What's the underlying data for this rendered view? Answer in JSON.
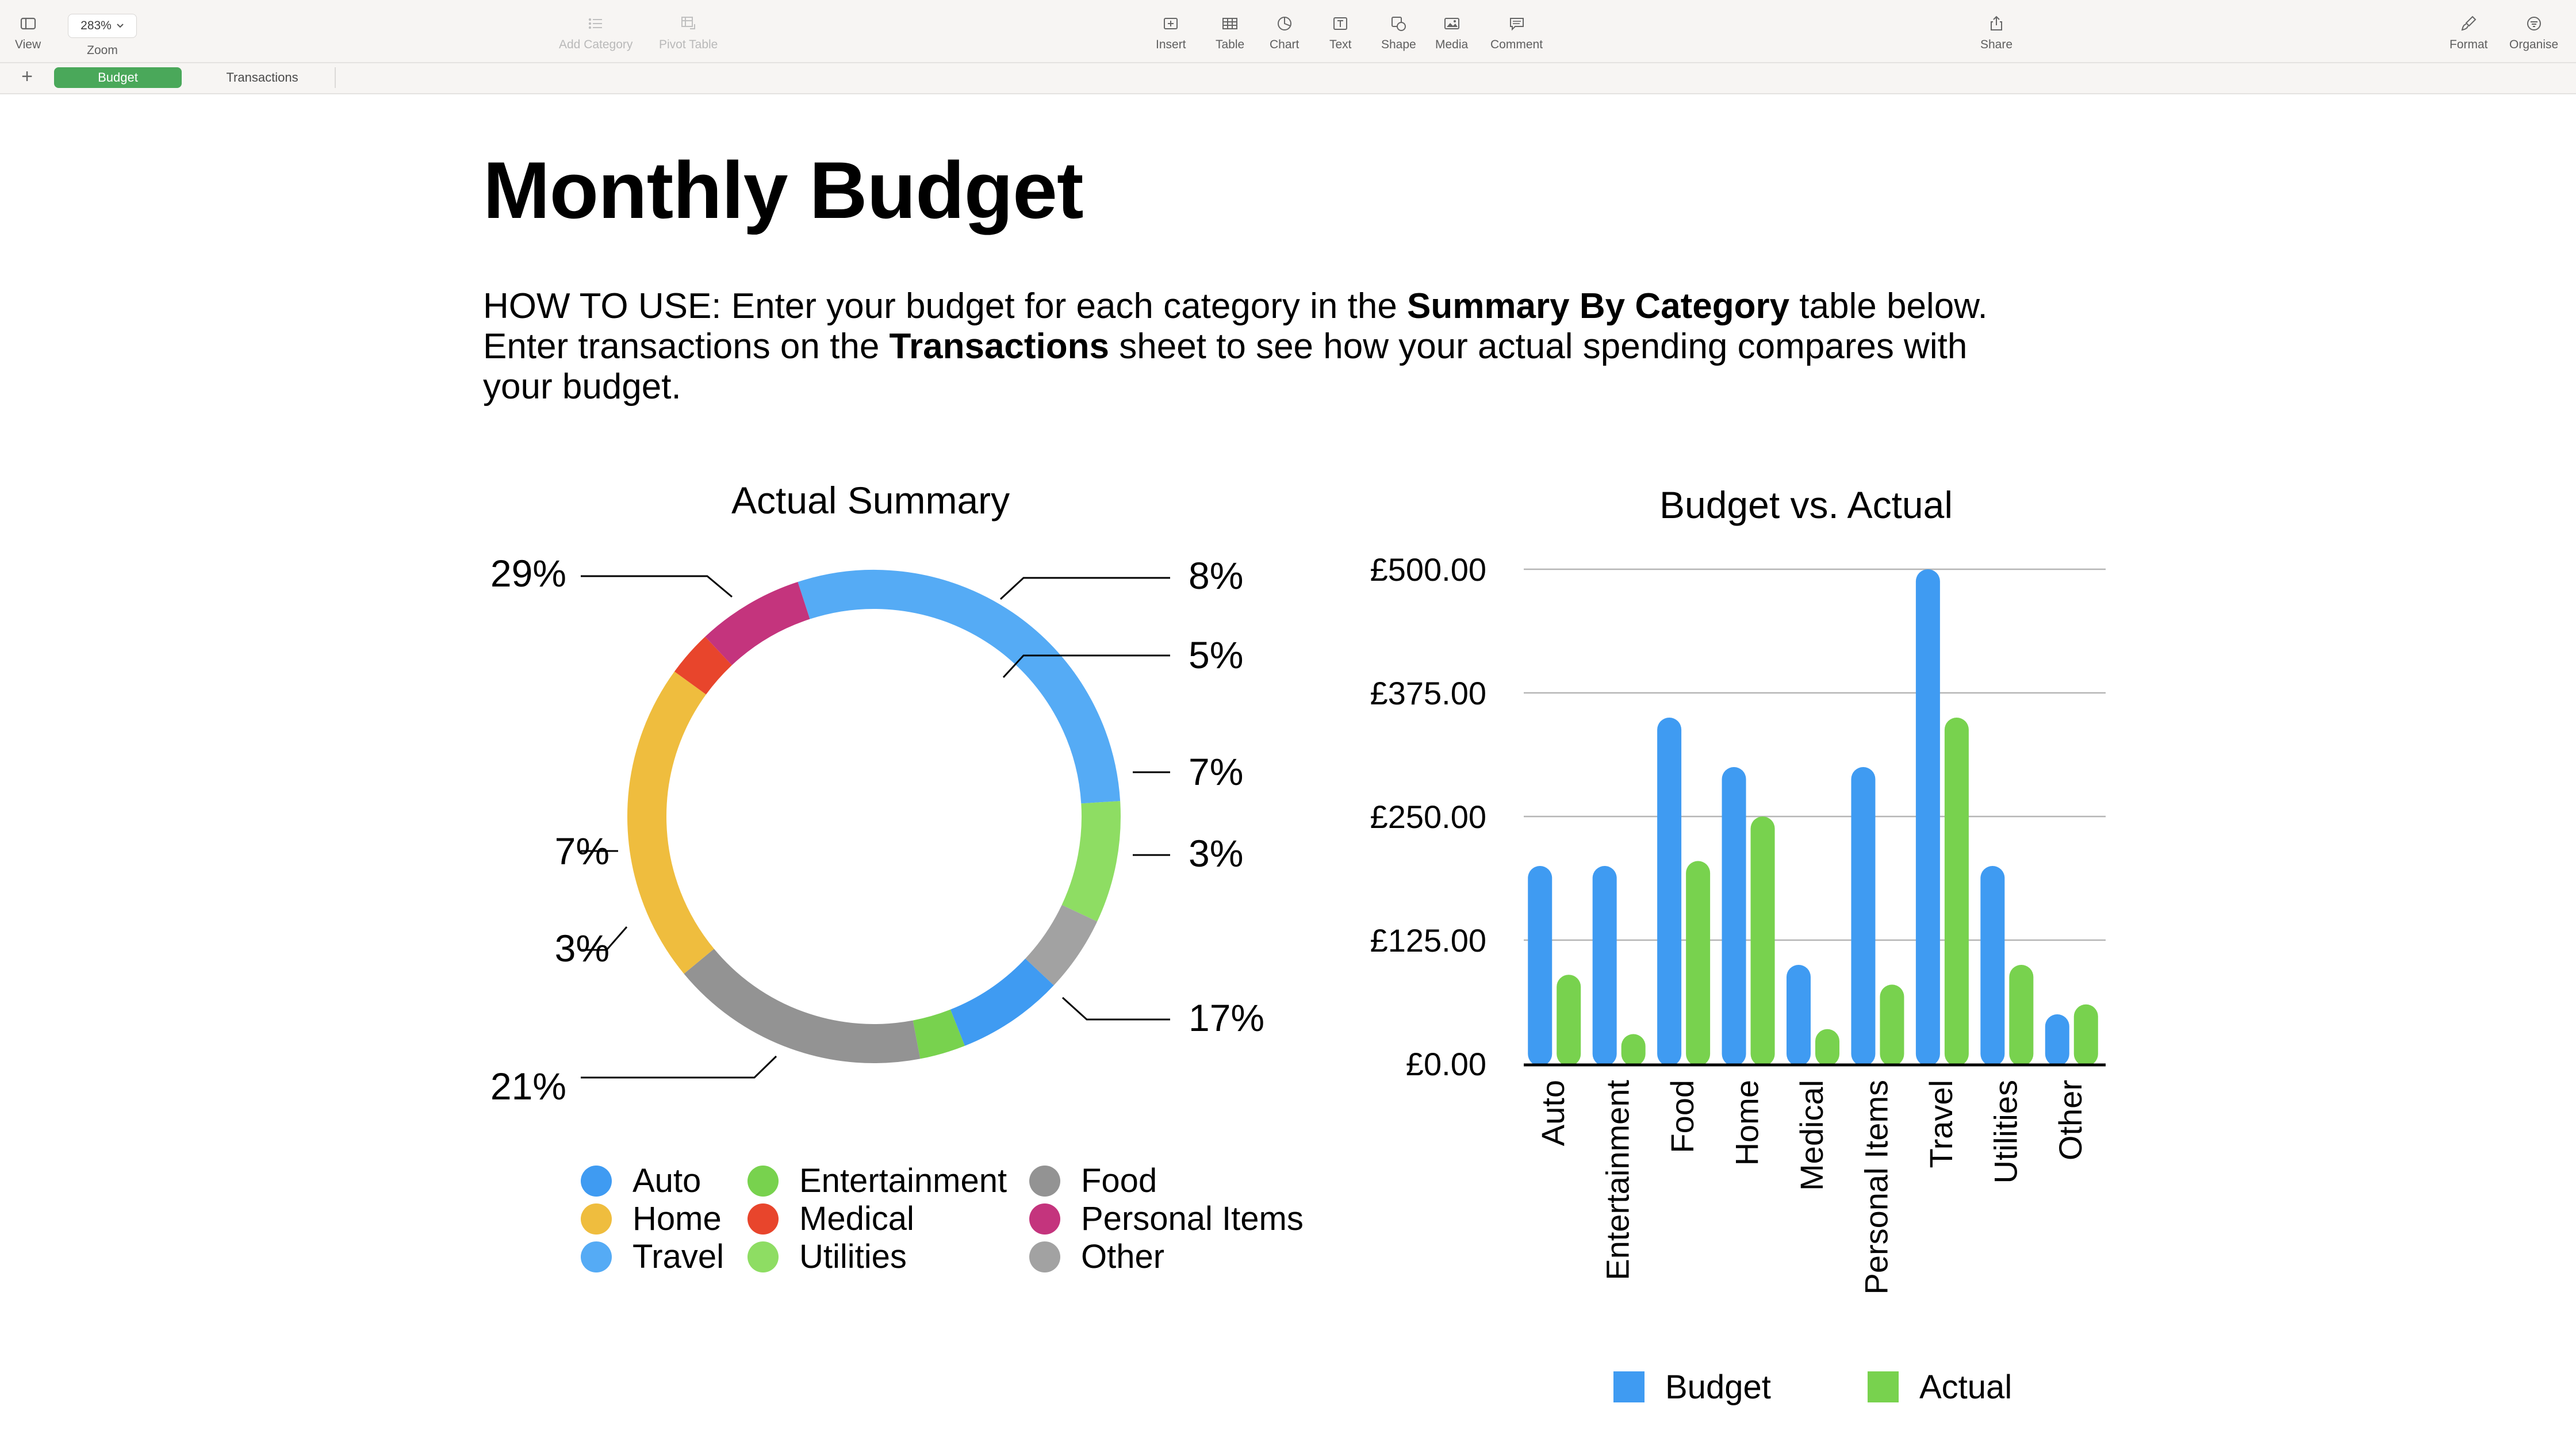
{
  "toolbar": {
    "view": {
      "label": "View",
      "icon": "sidebar-icon"
    },
    "zoom": {
      "value": "283%",
      "label": "Zoom"
    },
    "add_category": {
      "label": "Add Category",
      "icon": "list-icon"
    },
    "pivot_table": {
      "label": "Pivot Table",
      "icon": "pivot-table-icon"
    },
    "insert": {
      "label": "Insert",
      "icon": "insert-icon"
    },
    "table": {
      "label": "Table",
      "icon": "table-icon"
    },
    "chart": {
      "label": "Chart",
      "icon": "chart-icon"
    },
    "text": {
      "label": "Text",
      "icon": "text-box-icon"
    },
    "shape": {
      "label": "Shape",
      "icon": "shape-icon"
    },
    "media": {
      "label": "Media",
      "icon": "media-icon"
    },
    "comment": {
      "label": "Comment",
      "icon": "comment-icon"
    },
    "share": {
      "label": "Share",
      "icon": "share-icon"
    },
    "format": {
      "label": "Format",
      "icon": "paintbrush-icon"
    },
    "organise": {
      "label": "Organise",
      "icon": "organise-icon"
    }
  },
  "sheets": {
    "add": "+",
    "tabs": [
      "Budget",
      "Transactions"
    ],
    "active": "Budget",
    "active_color": "#4aa85a"
  },
  "document": {
    "title": "Monthly Budget",
    "howto": {
      "p1": "HOW TO USE: Enter your budget for each category in the ",
      "b1": "Summary By Category",
      "p2": " table below. Enter transactions on the ",
      "b2": "Transactions",
      "p3": " sheet to see how your actual spending compares with your budget."
    }
  },
  "chart_data": [
    {
      "type": "pie",
      "style": "donut",
      "title": "Actual Summary",
      "slices": [
        {
          "label": "Travel",
          "value": 29,
          "text": "29%",
          "color": "#55abf5"
        },
        {
          "label": "Utilities",
          "value": 8,
          "text": "8%",
          "color": "#8edd63"
        },
        {
          "label": "Other",
          "value": 5,
          "text": "5%",
          "color": "#a2a2a2"
        },
        {
          "label": "Auto",
          "value": 7,
          "text": "7%",
          "color": "#3f9bf2"
        },
        {
          "label": "Entertainment",
          "value": 3,
          "text": "3%",
          "color": "#78d24e"
        },
        {
          "label": "Food",
          "value": 17,
          "text": "17%",
          "color": "#939393"
        },
        {
          "label": "Home",
          "value": 21,
          "text": "21%",
          "color": "#efbd3e"
        },
        {
          "label": "Medical",
          "value": 3,
          "text": "3%",
          "color": "#e8452c"
        },
        {
          "label": "Personal Items",
          "value": 7,
          "text": "7%",
          "color": "#c4347d"
        }
      ],
      "legend": {
        "placement": "bottom",
        "items": [
          {
            "label": "Auto",
            "color": "#3f9bf2"
          },
          {
            "label": "Entertainment",
            "color": "#78d24e"
          },
          {
            "label": "Food",
            "color": "#939393"
          },
          {
            "label": "Home",
            "color": "#efbd3e"
          },
          {
            "label": "Medical",
            "color": "#e8452c"
          },
          {
            "label": "Personal Items",
            "color": "#c4347d"
          },
          {
            "label": "Travel",
            "color": "#55abf5"
          },
          {
            "label": "Utilities",
            "color": "#8edd63"
          },
          {
            "label": "Other",
            "color": "#a2a2a2"
          }
        ]
      }
    },
    {
      "type": "bar",
      "title": "Budget vs. Actual",
      "categories": [
        "Auto",
        "Entertainment",
        "Food",
        "Home",
        "Medical",
        "Personal Items",
        "Travel",
        "Utilities",
        "Other"
      ],
      "series": [
        {
          "name": "Budget",
          "color": "#3f9bf2",
          "values": [
            200,
            200,
            350,
            300,
            100,
            300,
            500,
            200,
            50
          ]
        },
        {
          "name": "Actual",
          "color": "#78d24e",
          "values": [
            90,
            30,
            205,
            250,
            35,
            80,
            350,
            100,
            60
          ]
        }
      ],
      "ylim": [
        0,
        500
      ],
      "yticks": [
        "£0.00",
        "£125.00",
        "£250.00",
        "£375.00",
        "£500.00"
      ],
      "ytick_values": [
        0,
        125,
        250,
        375,
        500
      ],
      "grid": true,
      "legend": {
        "placement": "bottom"
      }
    }
  ]
}
